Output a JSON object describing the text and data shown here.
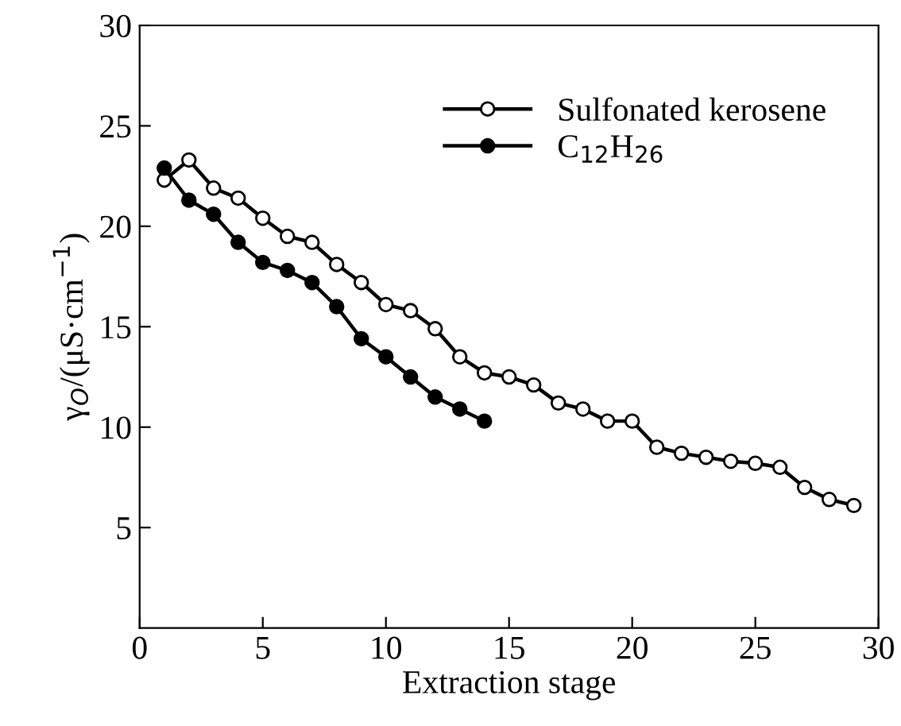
{
  "chart_data": {
    "type": "line",
    "xlabel": "Extraction stage",
    "ylabel": "γ$_{O}$/(μS·cm$^{−1}$)",
    "xlim": [
      0,
      30
    ],
    "ylim": [
      0,
      30
    ],
    "xticks": [
      0,
      5,
      10,
      15,
      20,
      25,
      30
    ],
    "yticks": [
      5,
      10,
      15,
      20,
      25,
      30
    ],
    "grid": false,
    "legend": "top right",
    "line_style": "solid",
    "series": [
      {
        "name": "Sulfonated kerosene",
        "color": "#ffffff",
        "marker": "circle",
        "x": [
          1,
          2,
          3,
          4,
          5,
          6,
          7,
          8,
          9,
          10,
          11,
          12,
          13,
          14,
          15,
          16,
          17,
          18,
          19,
          20,
          21,
          22,
          23,
          24,
          25,
          26,
          27,
          28,
          29
        ],
        "values": [
          22.3,
          23.3,
          21.9,
          21.4,
          20.4,
          19.5,
          19.2,
          18.1,
          17.2,
          16.1,
          15.8,
          14.9,
          13.5,
          12.7,
          12.5,
          12.1,
          11.2,
          10.9,
          10.3,
          10.3,
          9.0,
          8.7,
          8.5,
          8.3,
          8.2,
          8.0,
          7.0,
          6.4,
          6.1
        ]
      },
      {
        "name": "C$_{12}$H$_{26}$",
        "color": "#000000",
        "marker": "circle",
        "x": [
          1,
          2,
          3,
          4,
          5,
          6,
          7,
          8,
          9,
          10,
          11,
          12,
          13,
          14
        ],
        "values": [
          22.9,
          21.3,
          20.6,
          19.2,
          18.2,
          17.8,
          17.2,
          16.0,
          14.4,
          13.5,
          12.5,
          11.5,
          10.9,
          10.3
        ]
      }
    ]
  }
}
